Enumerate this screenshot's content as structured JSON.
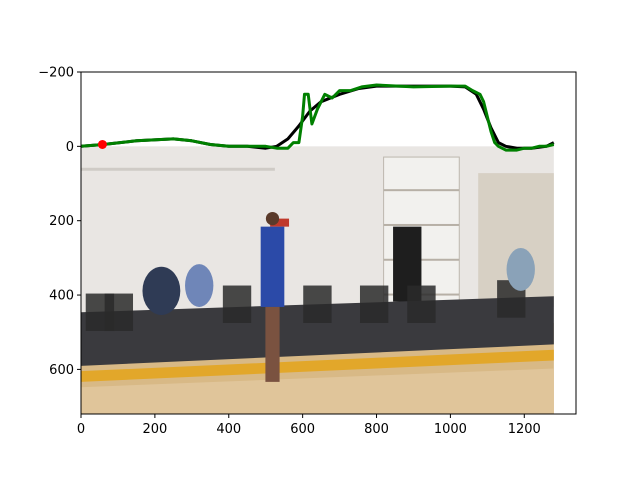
{
  "chart_data": {
    "type": "line",
    "title": "",
    "xlabel": "",
    "ylabel": "",
    "xlim": [
      0,
      1340
    ],
    "ylim": [
      720,
      -200
    ],
    "y_inverted": true,
    "grid": false,
    "legend": "none",
    "x_ticks": [
      0,
      200,
      400,
      600,
      800,
      1000,
      1200
    ],
    "y_ticks": [
      -200,
      0,
      200,
      400,
      600
    ],
    "x_tick_labels": [
      "0",
      "200",
      "400",
      "600",
      "800",
      "1000",
      "1200"
    ],
    "y_tick_labels": [
      "−200",
      "0",
      "200",
      "400",
      "600"
    ],
    "background_image": {
      "description": "Basketball practice gym: player in blue Warriors jersey on hardwood court, spectators seated on folding chairs, white wall with storage shelves",
      "x_extent": [
        0,
        1280
      ],
      "y_extent": [
        0,
        720
      ],
      "colors": {
        "wall": "#e9e6e3",
        "floor": "#d8b986",
        "stripe": "#e2a72a",
        "dark_floor": "#3a3a3e",
        "shelf": "#f2f1ee",
        "jersey": "#2b4aa8",
        "chair": "#2a2a2a"
      }
    },
    "series": [
      {
        "color": "#000000",
        "x": [
          0,
          60,
          150,
          250,
          300,
          350,
          400,
          450,
          500,
          530,
          560,
          590,
          620,
          650,
          700,
          750,
          800,
          900,
          1000,
          1040,
          1070,
          1090,
          1110,
          1130,
          1150,
          1180,
          1220,
          1260,
          1280
        ],
        "y": [
          0,
          -5,
          -15,
          -20,
          -15,
          -5,
          0,
          0,
          5,
          0,
          -20,
          -55,
          -95,
          -120,
          -140,
          -155,
          -162,
          -162,
          -162,
          -160,
          -140,
          -100,
          -50,
          -10,
          0,
          5,
          5,
          0,
          -10
        ]
      },
      {
        "color": "#008000",
        "x": [
          0,
          60,
          150,
          250,
          300,
          350,
          400,
          450,
          500,
          530,
          560,
          575,
          590,
          600,
          605,
          615,
          625,
          640,
          660,
          680,
          700,
          730,
          760,
          800,
          900,
          1000,
          1040,
          1060,
          1080,
          1090,
          1100,
          1110,
          1120,
          1130,
          1150,
          1180,
          1200,
          1220,
          1240,
          1260,
          1280
        ],
        "y": [
          0,
          -5,
          -15,
          -20,
          -15,
          -5,
          0,
          0,
          0,
          5,
          5,
          -10,
          -10,
          -80,
          -140,
          -140,
          -60,
          -100,
          -140,
          -130,
          -150,
          -150,
          -160,
          -165,
          -160,
          -162,
          -162,
          -150,
          -140,
          -120,
          -80,
          -40,
          -10,
          0,
          10,
          10,
          5,
          5,
          0,
          0,
          -5
        ]
      }
    ],
    "markers": [
      {
        "x": 58,
        "y": -5,
        "color": "#ff0000"
      }
    ]
  }
}
